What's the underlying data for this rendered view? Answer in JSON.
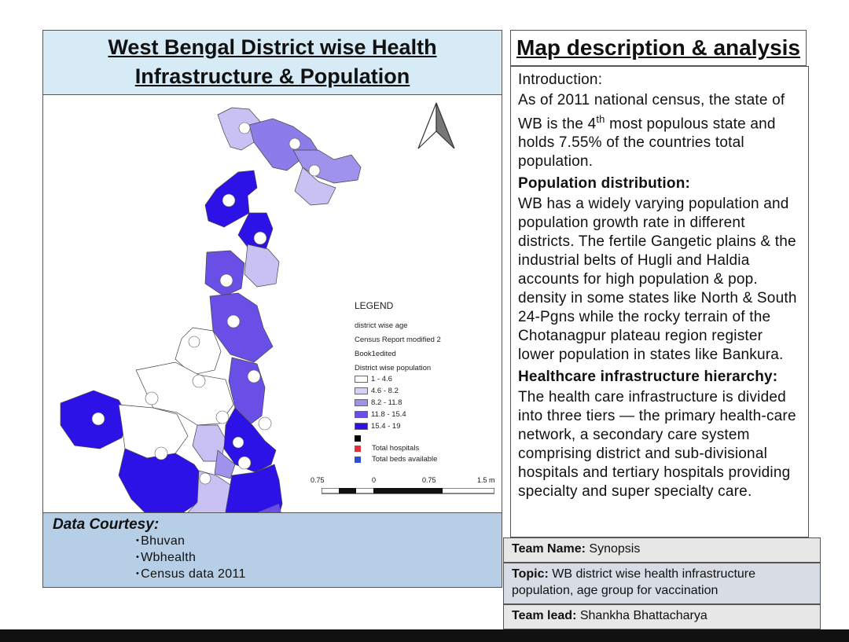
{
  "map_panel": {
    "title_line1": "West Bengal District wise Health",
    "title_line2": "Infrastructure & Population",
    "courtesy_heading": "Data Courtesy:",
    "courtesy_items": [
      "Bhuvan",
      "Wbhealth",
      "Census data 2011"
    ]
  },
  "legend": {
    "title": "LEGEND",
    "layers": [
      "district wise age",
      "Census Report modified 2",
      "Book1edited",
      "District wise population"
    ],
    "classes": [
      {
        "label": "1 - 4.6",
        "color": "#ffffff"
      },
      {
        "label": "4.6 - 8.2",
        "color": "#d7d2f5"
      },
      {
        "label": "8.2 - 11.8",
        "color": "#9f92ec"
      },
      {
        "label": "11.8 - 15.4",
        "color": "#6a4fe6"
      },
      {
        "label": "15.4 - 19",
        "color": "#2d12e8"
      }
    ],
    "markers": [
      {
        "label": "",
        "color": "#000000"
      },
      {
        "label": "Total hospitals",
        "color": "#e0303a"
      },
      {
        "label": "Total beds available",
        "color": "#2a4fd4"
      }
    ]
  },
  "scale_bar": {
    "labels": [
      "0.75",
      "0",
      "0.75",
      "1.5 m"
    ]
  },
  "description": {
    "heading": "Map description & analysis",
    "intro_label": "Introduction",
    "intro_colon": ":",
    "intro_text_a": "As of 2011 national census, the state of WB is the 4",
    "intro_sup": "th",
    "intro_text_b": " most populous state and holds 7.55%  of the countries total population.",
    "pop_heading": "Population distribution:",
    "pop_text": "WB has a  widely varying population and population growth rate in different districts. The fertile Gangetic plains & the industrial belts of Hugli and Haldia accounts for high population & pop. density in some states like North & South 24-Pgns while the rocky terrain of the Chotanagpur plateau region register lower population in states like Bankura.",
    "health_heading": "Healthcare infrastructure hierarchy:",
    "health_text": "The health care infrastructure is divided into three tiers — the primary health-care network, a secondary care system comprising district and sub-divisional hospitals and tertiary hospitals providing specialty and super specialty care."
  },
  "team": {
    "name_label": "Team Name:",
    "name_value": " Synopsis",
    "topic_label": "Topic:",
    "topic_value": " WB district wise health infrastructure population, age group for vaccination",
    "lead_label": "Team lead:",
    "lead_value": " Shankha Bhattacharya"
  }
}
